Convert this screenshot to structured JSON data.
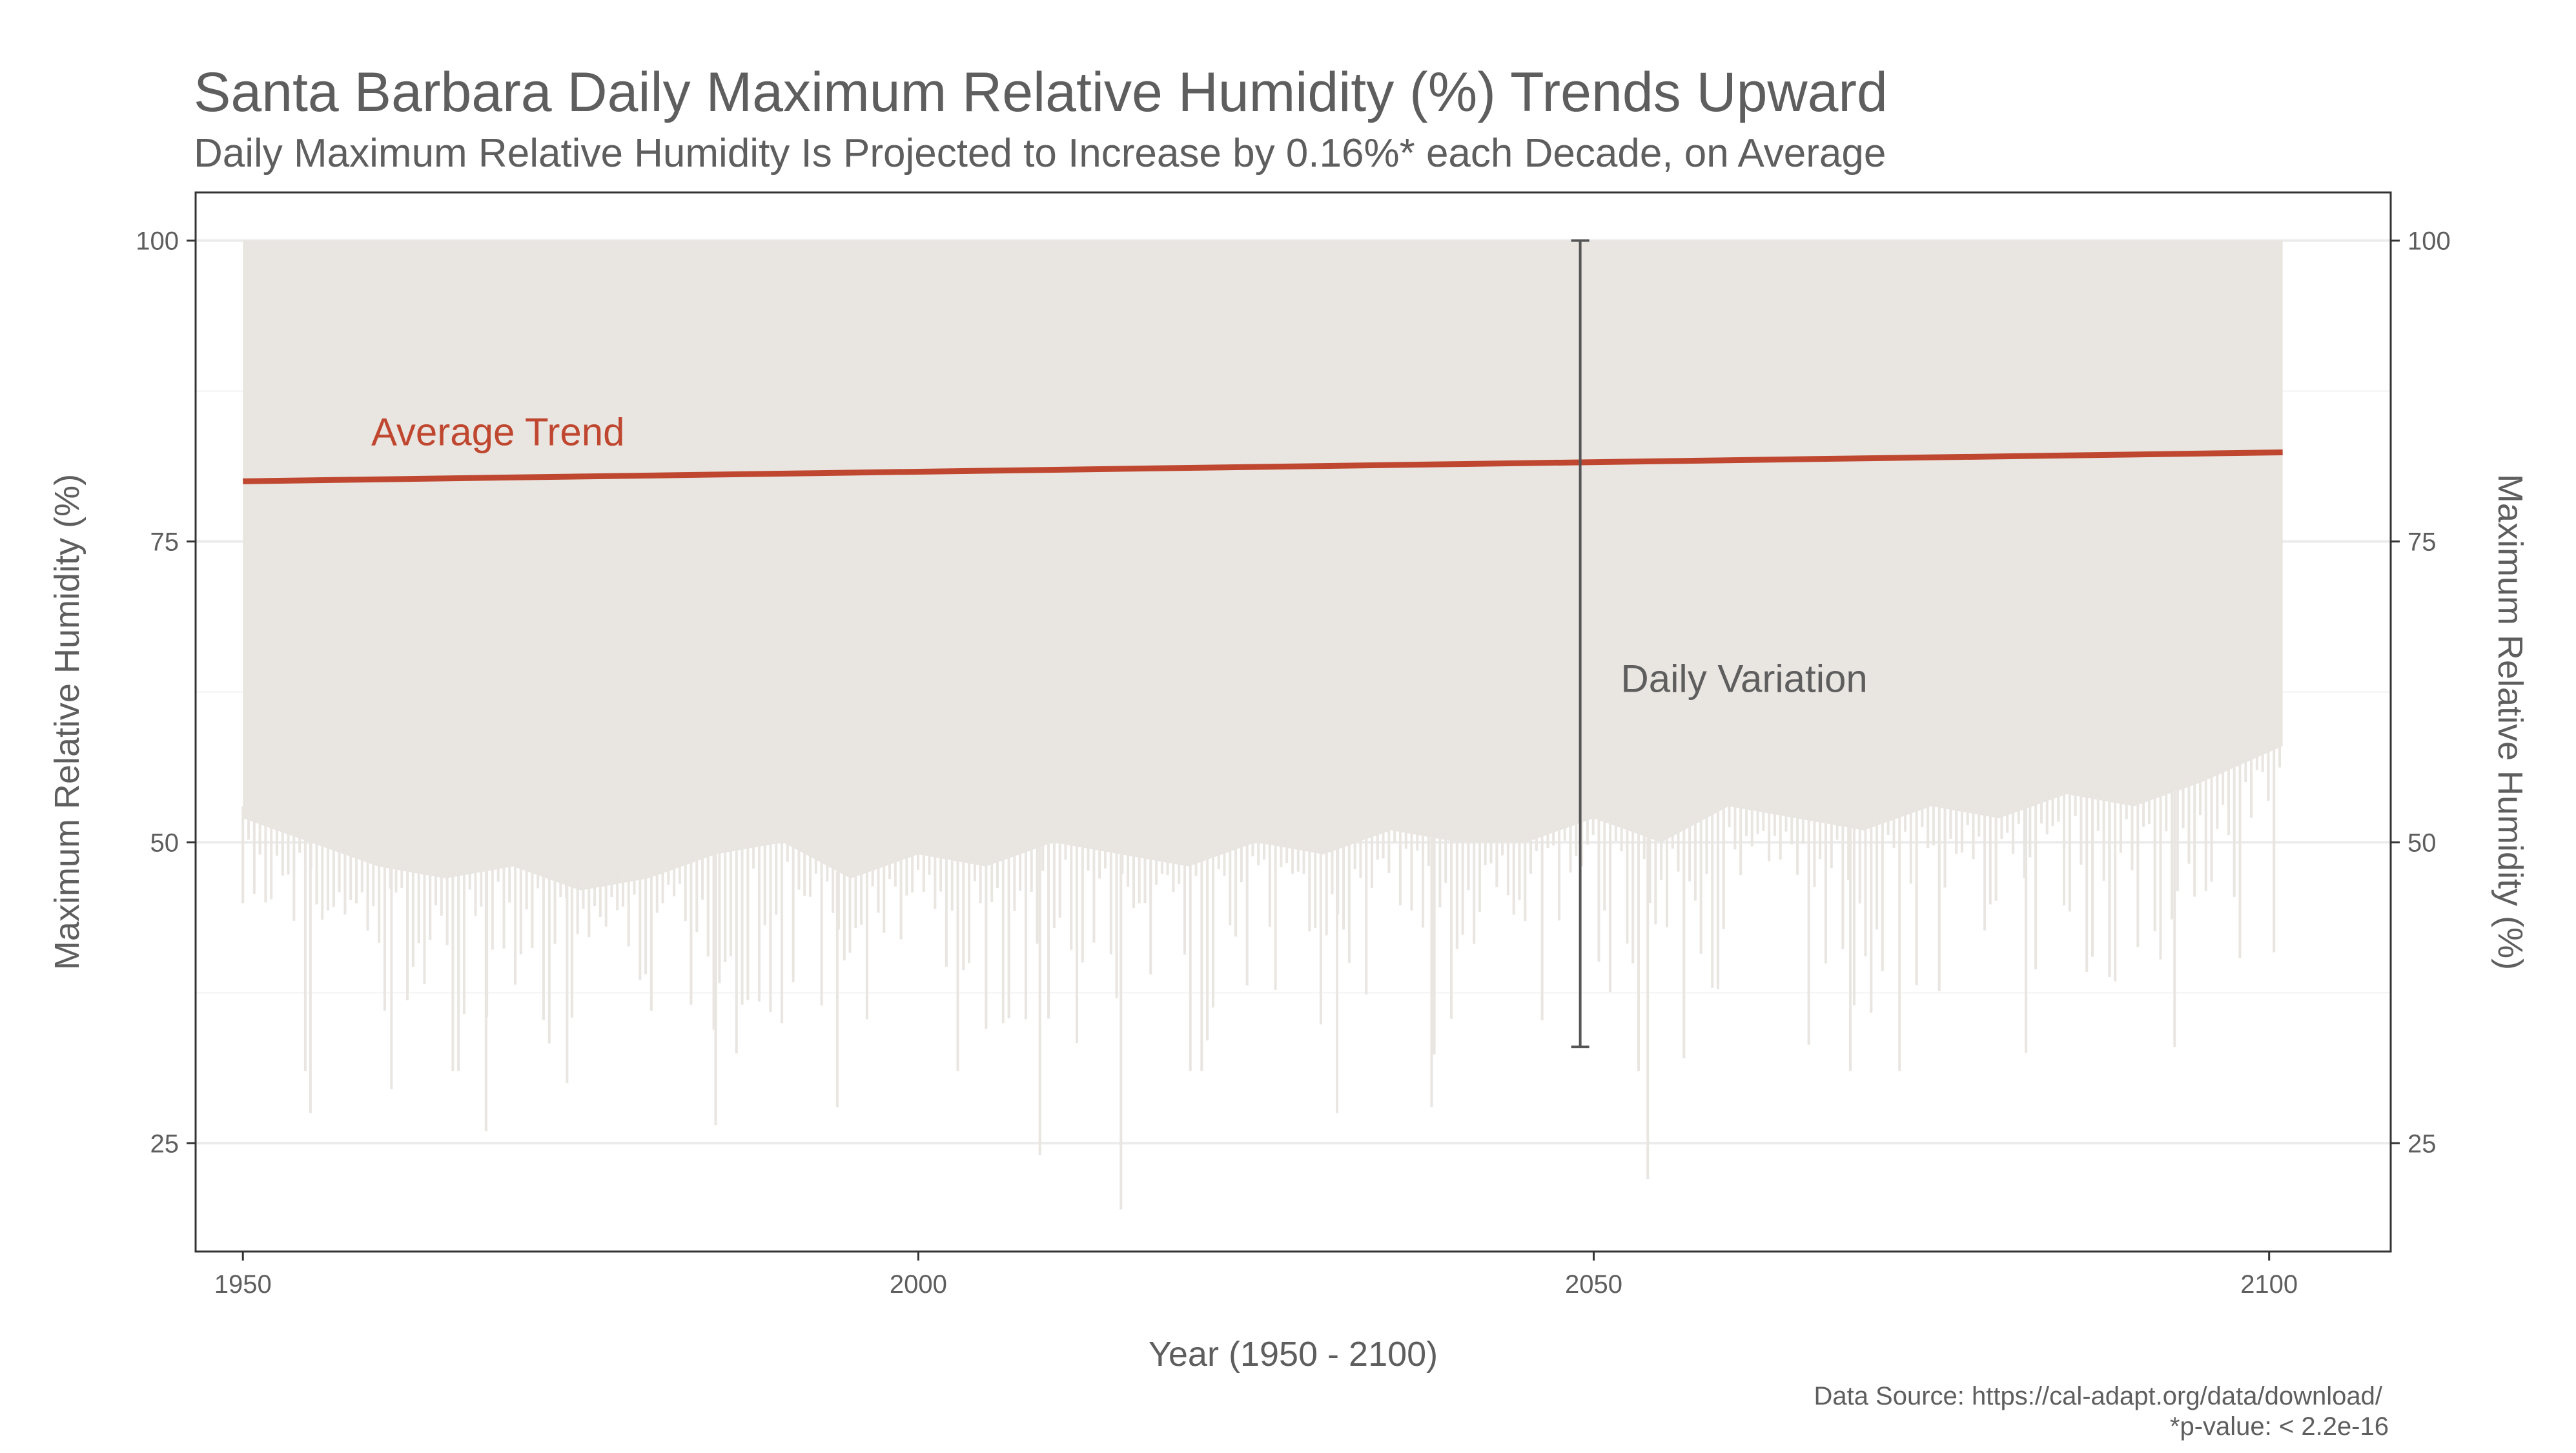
{
  "title": "Santa Barbara Daily Maximum Relative Humidity (%) Trends Upward",
  "subtitle": "Daily Maximum Relative Humidity Is Projected to Increase by 0.16%* each Decade, on Average",
  "caption_source": "Data Source: https://cal-adapt.org/data/download/",
  "caption_pvalue": "*p-value: < 2.2e-16",
  "colors": {
    "trend": "#c0472f",
    "daily_band": "#e9e5e1",
    "grid": "#ebebeb",
    "axis": "#333333",
    "text": "#5e5e5e"
  },
  "chart_data": {
    "type": "line",
    "xlabel": "Year (1950 - 2100)",
    "ylabel": "Maximum Relative Humidity (%)",
    "ylabel_secondary": "Maximum Relative Humidity (%)",
    "xlim": [
      1946.5,
      2109
    ],
    "ylim": [
      16,
      104
    ],
    "x_ticks": [
      1950,
      2000,
      2050,
      2100
    ],
    "y_ticks": [
      25,
      50,
      75,
      100
    ],
    "grid": true,
    "series": [
      {
        "kind": "daily_range_band",
        "x_range": [
          1950,
          2101
        ],
        "upper": 100,
        "typical_lower": [
          [
            1950,
            52
          ],
          [
            1955,
            50
          ],
          [
            1960,
            48
          ],
          [
            1965,
            47
          ],
          [
            1970,
            48
          ],
          [
            1975,
            46
          ],
          [
            1980,
            47
          ],
          [
            1985,
            49
          ],
          [
            1990,
            50
          ],
          [
            1995,
            47
          ],
          [
            2000,
            49
          ],
          [
            2005,
            48
          ],
          [
            2010,
            50
          ],
          [
            2015,
            49
          ],
          [
            2020,
            48
          ],
          [
            2025,
            50
          ],
          [
            2030,
            49
          ],
          [
            2035,
            51
          ],
          [
            2040,
            50
          ],
          [
            2045,
            50
          ],
          [
            2050,
            52
          ],
          [
            2055,
            50
          ],
          [
            2060,
            53
          ],
          [
            2065,
            52
          ],
          [
            2070,
            51
          ],
          [
            2075,
            53
          ],
          [
            2080,
            52
          ],
          [
            2085,
            54
          ],
          [
            2090,
            53
          ],
          [
            2095,
            55
          ],
          [
            2101,
            58
          ]
        ],
        "extreme_minima": [
          [
            1955,
            27.5
          ],
          [
            1961,
            29.5
          ],
          [
            1968,
            26
          ],
          [
            1974,
            30
          ],
          [
            1985,
            26.5
          ],
          [
            1994,
            28
          ],
          [
            2009,
            24
          ],
          [
            2015,
            19.5
          ],
          [
            2031,
            27.5
          ],
          [
            2038,
            28
          ],
          [
            2054,
            22
          ],
          [
            2069,
            31
          ],
          [
            2082,
            32.5
          ],
          [
            2093,
            33
          ]
        ]
      },
      {
        "kind": "trend",
        "x": [
          1950,
          2101
        ],
        "y": [
          80,
          82.4
        ]
      }
    ],
    "annotations": [
      {
        "text": "Average Trend",
        "x": 1959.5,
        "y": 83,
        "color": "#c0472f"
      },
      {
        "text": "Daily Variation",
        "x": 2052,
        "y": 62.5,
        "color": "#5e5e5e"
      },
      {
        "kind": "range_marker",
        "x": 2049,
        "y_min": 33,
        "y_max": 100
      }
    ]
  }
}
